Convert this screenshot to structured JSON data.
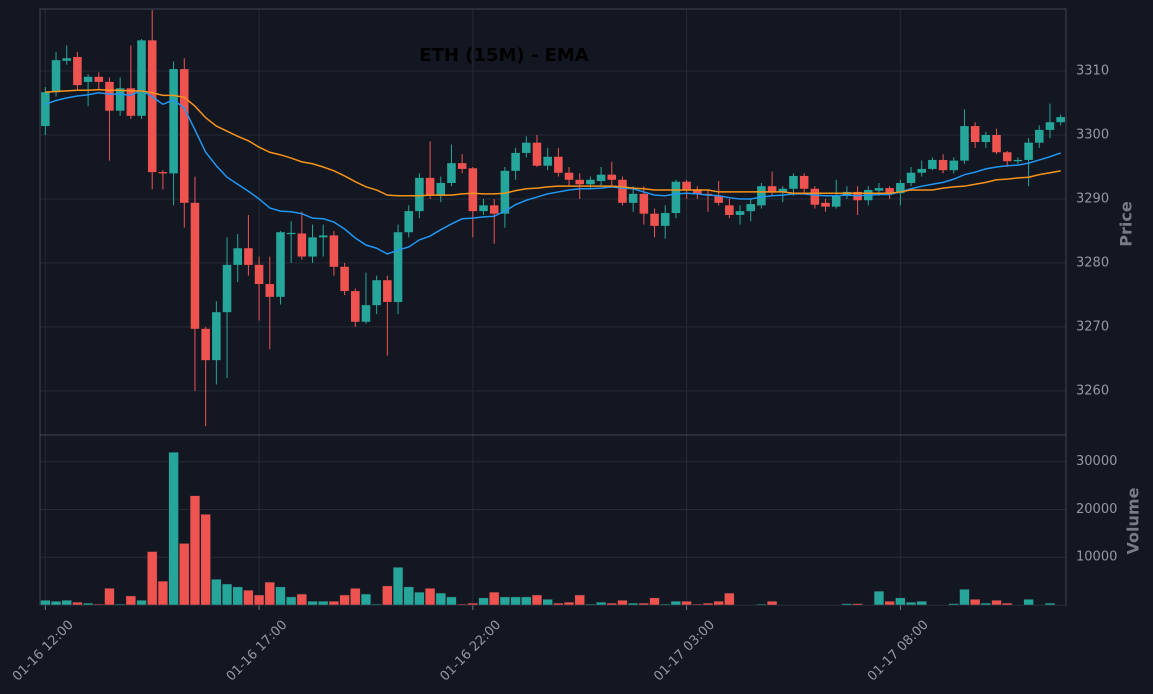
{
  "chart_data": {
    "type": "candlestick",
    "title": "ETH (15M) - EMA",
    "ylabel": "Price",
    "volume_label": "Volume",
    "up_color": "#26a69a",
    "down_color": "#ef5350",
    "grid": true,
    "categories": [
      "01-16 12:00",
      null,
      null,
      null,
      null,
      null,
      null,
      null,
      null,
      null,
      null,
      null,
      null,
      null,
      null,
      null,
      null,
      null,
      null,
      null,
      "01-16 17:00",
      null,
      null,
      null,
      null,
      null,
      null,
      null,
      null,
      null,
      null,
      null,
      null,
      null,
      null,
      null,
      null,
      null,
      null,
      null,
      "01-16 22:00",
      null,
      null,
      null,
      null,
      null,
      null,
      null,
      null,
      null,
      null,
      null,
      null,
      null,
      null,
      null,
      null,
      null,
      null,
      null,
      "01-17 03:00",
      null,
      null,
      null,
      null,
      null,
      null,
      null,
      null,
      null,
      null,
      null,
      null,
      null,
      null,
      null,
      null,
      null,
      null,
      null,
      "01-17 08:00",
      null,
      null,
      null,
      null,
      null,
      null,
      null,
      null,
      null,
      null,
      null,
      null,
      null,
      null,
      null
    ],
    "open": [
      3301.4,
      3306.7,
      3311.6,
      3312.2,
      3308.3,
      3309.1,
      3308.3,
      3303.8,
      3307.3,
      3303,
      3314.8,
      3294.2,
      3294,
      3310.3,
      3289.4,
      3269.7,
      3264.8,
      3272.3,
      3279.7,
      3282.3,
      3279.7,
      3276.7,
      3274.7,
      3284.5,
      3284.6,
      3281,
      3284,
      3284.3,
      3279.4,
      3275.6,
      3270.8,
      3273.4,
      3277.3,
      3273.9,
      3284.8,
      3288.1,
      3293.3,
      3290.5,
      3292.5,
      3295.6,
      3294.8,
      3288.1,
      3289,
      3287.7,
      3294.4,
      3297.2,
      3298.8,
      3295.2,
      3296.6,
      3294.1,
      3293,
      3292.3,
      3292.8,
      3293.8,
      3293,
      3289.4,
      3290.8,
      3287.7,
      3285.8,
      3287.8,
      3292.7,
      3291.5,
      3290.8,
      3290.5,
      3289,
      3287.5,
      3288.1,
      3289,
      3292,
      3291,
      3291.6,
      3293.6,
      3291.6,
      3289.4,
      3288.8,
      3290.5,
      3291.1,
      3289.8,
      3291.3,
      3291.7,
      3290.9,
      3292.5,
      3294.1,
      3294.7,
      3296.1,
      3294.5,
      3296,
      3301.4,
      3298.9,
      3300,
      3297.3,
      3295.9,
      3296.1,
      3298.8,
      3300.8,
      3302
    ],
    "high": [
      3307.5,
      3313,
      3314,
      3313,
      3309.5,
      3309.8,
      3309,
      3309,
      3314,
      3315,
      3319.5,
      3294.5,
      3311.5,
      3312,
      3293.5,
      3270,
      3274,
      3284,
      3284.5,
      3287.5,
      3281,
      3281,
      3285,
      3286.5,
      3288,
      3286,
      3286,
      3285,
      3280,
      3276,
      3278.5,
      3278,
      3278,
      3286,
      3289,
      3294,
      3299,
      3293.5,
      3298.5,
      3297,
      3295,
      3290,
      3290,
      3295,
      3298,
      3299.8,
      3300,
      3298,
      3298,
      3295,
      3294,
      3293.5,
      3295,
      3295.8,
      3293.5,
      3292,
      3292,
      3288.5,
      3289,
      3293,
      3293,
      3292,
      3291.5,
      3292.8,
      3290,
      3289,
      3290,
      3292.5,
      3294.3,
      3292,
      3294,
      3294,
      3292,
      3290,
      3293,
      3292,
      3292,
      3292,
      3292.5,
      3292,
      3293,
      3295,
      3296,
      3296.5,
      3297,
      3296.5,
      3304,
      3302,
      3300.5,
      3301,
      3297.5,
      3296.5,
      3299.5,
      3301.5,
      3304.9,
      3303.2
    ],
    "low": [
      3300,
      3306,
      3311,
      3307,
      3304.5,
      3307,
      3296,
      3303,
      3302.5,
      3302.5,
      3291.5,
      3291.5,
      3289,
      3285.5,
      3260,
      3254.5,
      3261,
      3262,
      3277,
      3278,
      3271,
      3266.5,
      3273.5,
      3280,
      3280.5,
      3280,
      3281,
      3278,
      3275,
      3270,
      3270.5,
      3272,
      3265.5,
      3272,
      3284,
      3287,
      3290,
      3289.5,
      3292,
      3294,
      3284,
      3287.5,
      3283,
      3285.5,
      3293,
      3296.5,
      3295,
      3294.5,
      3293.5,
      3292,
      3290,
      3291.5,
      3292,
      3292,
      3289,
      3288,
      3286,
      3284,
      3283.8,
      3287,
      3290,
      3290,
      3288,
      3289,
      3287,
      3286,
      3286.5,
      3288.5,
      3290.5,
      3289.5,
      3290.5,
      3291,
      3288.5,
      3288,
      3288.5,
      3290,
      3287.5,
      3289,
      3290.5,
      3290,
      3289,
      3292,
      3293.5,
      3294.5,
      3294,
      3294,
      3295.5,
      3298,
      3298,
      3297,
      3295,
      3295.5,
      3292,
      3298,
      3299.5,
      3301.5
    ],
    "close": [
      3306.7,
      3311.7,
      3312,
      3307.8,
      3309.1,
      3308.3,
      3303.8,
      3307.3,
      3303,
      3314.8,
      3294.2,
      3294,
      3310.3,
      3289.4,
      3269.7,
      3264.8,
      3272.3,
      3279.7,
      3282.3,
      3279.7,
      3276.7,
      3274.7,
      3284.8,
      3284.7,
      3281,
      3284,
      3284.3,
      3279.4,
      3275.6,
      3270.8,
      3273.4,
      3277.3,
      3273.9,
      3284.8,
      3288.1,
      3293.3,
      3290.5,
      3292.5,
      3295.6,
      3294.7,
      3288.1,
      3289,
      3287.7,
      3294.4,
      3297.2,
      3298.8,
      3295.2,
      3296.6,
      3294.1,
      3293,
      3292.3,
      3293,
      3293.8,
      3293,
      3289.4,
      3290.8,
      3287.7,
      3285.8,
      3287.8,
      3292.7,
      3291.4,
      3290.8,
      3290.6,
      3289.4,
      3287.5,
      3288.1,
      3289.2,
      3292,
      3291,
      3291.6,
      3293.6,
      3291.6,
      3289.1,
      3288.8,
      3290.5,
      3291.1,
      3289.8,
      3291.4,
      3291.7,
      3290.9,
      3292.5,
      3294.1,
      3294.7,
      3296.1,
      3294.5,
      3296,
      3301.4,
      3298.9,
      3300,
      3297.3,
      3295.9,
      3296.1,
      3298.8,
      3300.8,
      3302,
      3302.8
    ],
    "volume": [
      1000,
      800,
      1000,
      600,
      400,
      200,
      3500,
      200,
      1900,
      1000,
      11200,
      5000,
      32000,
      12900,
      22900,
      19000,
      5400,
      4400,
      3800,
      3100,
      2100,
      4800,
      3800,
      1700,
      2300,
      800,
      800,
      800,
      2100,
      3500,
      2300,
      200,
      4000,
      7900,
      3800,
      2700,
      3500,
      2500,
      1700,
      200,
      400,
      1500,
      2700,
      1700,
      1700,
      1700,
      2100,
      1200,
      400,
      600,
      2100,
      200,
      600,
      400,
      1000,
      400,
      400,
      1500,
      200,
      800,
      800,
      200,
      400,
      800,
      2500,
      100,
      100,
      200,
      800,
      100,
      100,
      100,
      100,
      100,
      100,
      300,
      300,
      100,
      2900,
      800,
      1500,
      600,
      800,
      100,
      100,
      300,
      3300,
      1200,
      400,
      1000,
      400,
      100,
      1200,
      100,
      400,
      100
    ],
    "ema_lines": [
      {
        "color": "#2196f3",
        "values": [
          3304.8,
          3305.4,
          3305.8,
          3306.1,
          3306.3,
          3306.6,
          3306.4,
          3306.4,
          3306.2,
          3307,
          3306,
          3304.8,
          3305.5,
          3304.2,
          3300.8,
          3297.3,
          3295.2,
          3293.4,
          3292.3,
          3291.2,
          3290,
          3288.6,
          3288.1,
          3288,
          3287.7,
          3287,
          3286.9,
          3286.4,
          3285.3,
          3283.9,
          3282.8,
          3282.3,
          3281.4,
          3282,
          3282.5,
          3283.6,
          3284.2,
          3285.2,
          3286.1,
          3286.9,
          3287,
          3287.2,
          3287.3,
          3288.1,
          3289.1,
          3289.8,
          3290.3,
          3290.8,
          3291.1,
          3291.4,
          3291.6,
          3291.6,
          3291.7,
          3291.9,
          3291.7,
          3291.6,
          3291.1,
          3290.6,
          3290.5,
          3290.8,
          3290.9,
          3290.8,
          3290.6,
          3290.5,
          3290.2,
          3290,
          3290,
          3290.3,
          3290.5,
          3290.6,
          3290.8,
          3290.8,
          3290.6,
          3290.5,
          3290.5,
          3290.6,
          3290.5,
          3290.6,
          3290.7,
          3290.7,
          3291.1,
          3291.6,
          3292,
          3292.3,
          3292.6,
          3293.1,
          3293.8,
          3294.2,
          3294.7,
          3295,
          3295.2,
          3295.3,
          3295.6,
          3296.1,
          3296.6,
          3297.2
        ]
      },
      {
        "color": "#f7931a",
        "values": [
          3306.7,
          3306.8,
          3306.9,
          3307,
          3307,
          3307.1,
          3307,
          3307,
          3306.9,
          3306.9,
          3306.6,
          3306.2,
          3306.2,
          3305.9,
          3304.5,
          3302.7,
          3301.4,
          3300.6,
          3299.8,
          3299.1,
          3298.1,
          3297.3,
          3296.9,
          3296.4,
          3295.8,
          3295.5,
          3295,
          3294.4,
          3293.6,
          3292.7,
          3291.9,
          3291.4,
          3290.6,
          3290.5,
          3290.5,
          3290.5,
          3290.6,
          3290.6,
          3290.6,
          3290.8,
          3290.9,
          3290.8,
          3290.8,
          3290.9,
          3291.3,
          3291.6,
          3291.7,
          3291.9,
          3292,
          3292,
          3292,
          3292,
          3292,
          3292,
          3291.9,
          3291.7,
          3291.6,
          3291.4,
          3291.4,
          3291.4,
          3291.4,
          3291.4,
          3291.4,
          3291.1,
          3291.1,
          3291.1,
          3291.1,
          3291.1,
          3291.1,
          3291.1,
          3290.9,
          3290.9,
          3290.9,
          3290.9,
          3290.9,
          3290.9,
          3290.9,
          3290.9,
          3290.9,
          3290.9,
          3291.1,
          3291.4,
          3291.4,
          3291.4,
          3291.7,
          3291.9,
          3292,
          3292.3,
          3292.6,
          3293,
          3293.1,
          3293.3,
          3293.4,
          3293.8,
          3294.1,
          3294.4
        ]
      }
    ],
    "ylim": [
      3253.1,
      3319.7
    ],
    "yticks": [
      3260,
      3270,
      3280,
      3290,
      3300,
      3310
    ],
    "volume_ylim": [
      0,
      35600
    ],
    "volume_yticks": [
      10000,
      20000,
      30000
    ]
  }
}
